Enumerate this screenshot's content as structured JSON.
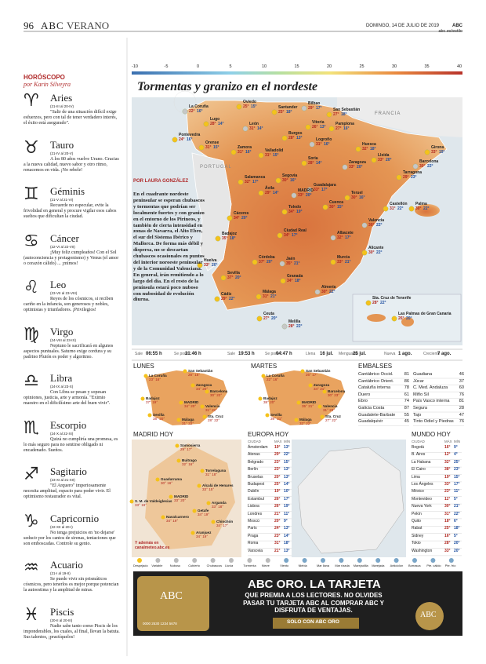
{
  "header": {
    "page": "96",
    "brand": "ABC",
    "section": "VERANO",
    "date": "DOMINGO, 14 DE JULIO DE 2019",
    "brand_right": "ABC",
    "url": "abc.es/estilo"
  },
  "horoscope": {
    "title": "HORÓSCOPO",
    "author": "por Karin Silveyra",
    "signs": [
      {
        "symbol": "♈",
        "name": "Aries",
        "dates": "(21-III al 20-IV)",
        "text": "\"Salir de una situación difícil exige esfuerzos, pero con tal de tener verdadero interés, el éxito está asegurado\"."
      },
      {
        "symbol": "♉",
        "name": "Tauro",
        "dates": "(21-IV al 20-V)",
        "text": "A los 80 años vuelve Urano. Gracias a la nueva calidad, nuevo sabor y otro ritmo, renacemos en vida. ¡No rebele!"
      },
      {
        "symbol": "♊",
        "name": "Géminis",
        "dates": "(21-V al 21-VI)",
        "text": "Recuerde no especular, evite la frivolidad en general y procure vigilar esos cabos sueltos que dificultan la ciudad."
      },
      {
        "symbol": "♋",
        "name": "Cáncer",
        "dates": "(22-VI al 22-VII)",
        "text": "¡Muy feliz cumpleaños! Con el Sol (autoconciencia y protagonismo) y Venus (el amor o corazón cálido) ... ¡mimos!"
      },
      {
        "symbol": "♌",
        "name": "Leo",
        "dates": "(23-VII al 23-VIII)",
        "text": "Reyes de los cósmicos, si reciben cariño en la infancia, son generosos y nobles, optimistas y triunfadores. ¡Privilegios!"
      },
      {
        "symbol": "♍",
        "name": "Virgo",
        "dates": "(24-VIII al 23-IX)",
        "text": "Neptuno le sacrificará en algunos aspectos puntuales. Saturno exige cordura y su padrino Plutón es poder y algoritmo."
      },
      {
        "symbol": "♎",
        "name": "Libra",
        "dates": "(24-IX al 23-X)",
        "text": "Con Libra se pesan y sopesan opiniones, justicia, arte y armonía. \"Eximio maestro en el dificilísimo arte del buen vivir\"."
      },
      {
        "symbol": "♏",
        "name": "Escorpio",
        "dates": "(24-X al 22-XI)",
        "text": "Quizá no cumpliría una promesa, es lo más seguro para no sentirse obligado ni encadenado. Sueños."
      },
      {
        "symbol": "♐",
        "name": "Sagitario",
        "dates": "(23-XI al 21-XII)",
        "text": "\"El Arquero\" imperiosamente necesita amplitud, espacio para poder vivir. El optimismo restaurador es vital."
      },
      {
        "symbol": "♑",
        "name": "Capricornio",
        "dates": "(22-XII al 20-I)",
        "text": "No tenga prejuicios en 'no dejarse' seducir por los cantos de sirenas, tentaciones que son emboscadas. Controle su genio."
      },
      {
        "symbol": "♒",
        "name": "Acuario",
        "dates": "(21-I al 19-II)",
        "text": "Se puede vivir sin prismáticos cósmicos, pero tenerlos es mejor porque potencian la autoestima y la amplitud de miras."
      },
      {
        "symbol": "♓",
        "name": "Piscis",
        "dates": "(20-II al 20-III)",
        "text": "Nadie sabe tanto como Piscis de los imponderables, los cuales, al final, llevan la batuta. Sus talentos, ¡practíquelos!"
      }
    ]
  },
  "weather": {
    "scale": [
      "-10",
      "-5",
      "0",
      "5",
      "10",
      "15",
      "20",
      "25",
      "30",
      "35",
      "40"
    ],
    "title": "Tormentas y granizo en el nordeste",
    "byline": "POR LAURA GONZÁLEZ",
    "article": "En el cuadrante nordeste peninsular se esperan chubascos y tormentas que podrían ser localmente fuertes y con granizo en el entorno de los Pirineos, y también de cierta intensidad en zonas de Navarra, el Alto Ebro, el sur del Sistema Ibérico y Mallorca. De forma más débil y dispersa, no se descartan chubascos ocasionales en puntos del interior noroeste peninsular y de la Comunidad Valenciana. En general, irán remitiendo a lo largo del día. En el resto de la península estará poco nuboso con nubosidad de evolución diurna.",
    "france": "FRANCIA",
    "portugal": "PORTUGAL",
    "cities": [
      {
        "name": "La Coruña",
        "max": "22°",
        "min": "16°"
      },
      {
        "name": "Lugo",
        "max": "28°",
        "min": "14°"
      },
      {
        "name": "Oviedo",
        "max": "25°",
        "min": "15°"
      },
      {
        "name": "Santander",
        "max": "25°",
        "min": "18°"
      },
      {
        "name": "Bilbao",
        "max": "29°",
        "min": "17°"
      },
      {
        "name": "San Sebastián",
        "max": "27°",
        "min": "18°"
      },
      {
        "name": "Pontevedra",
        "max": "24°",
        "min": "16°"
      },
      {
        "name": "Orense",
        "max": "31°",
        "min": "15°"
      },
      {
        "name": "León",
        "max": "31°",
        "min": "14°"
      },
      {
        "name": "Burgos",
        "max": "28°",
        "min": "13°"
      },
      {
        "name": "Vitoria",
        "max": "26°",
        "min": "13°"
      },
      {
        "name": "Pamplona",
        "max": "27°",
        "min": "16°"
      },
      {
        "name": "Logroño",
        "max": "31°",
        "min": "16°"
      },
      {
        "name": "Huesca",
        "max": "32°",
        "min": "18°"
      },
      {
        "name": "Girona",
        "max": "33°",
        "min": "19°"
      },
      {
        "name": "Lleida",
        "max": "33°",
        "min": "20°"
      },
      {
        "name": "Barcelona",
        "max": "30°",
        "min": "22°"
      },
      {
        "name": "Zamora",
        "max": "31°",
        "min": "16°"
      },
      {
        "name": "Valladolid",
        "max": "31°",
        "min": "15°"
      },
      {
        "name": "Soria",
        "max": "28°",
        "min": "14°"
      },
      {
        "name": "Zaragoza",
        "max": "33°",
        "min": "20°"
      },
      {
        "name": "Tarragona",
        "max": "29°",
        "min": "23°"
      },
      {
        "name": "Salamanca",
        "max": "32°",
        "min": "17°"
      },
      {
        "name": "Segovia",
        "max": "30°",
        "min": "16°"
      },
      {
        "name": "Guadalajara",
        "max": "33°",
        "min": "17°"
      },
      {
        "name": "Teruel",
        "max": "30°",
        "min": "16°"
      },
      {
        "name": "Castellón",
        "max": "31°",
        "min": "22°"
      },
      {
        "name": "Ávila",
        "max": "29°",
        "min": "14°"
      },
      {
        "name": "MADRID",
        "max": "33°",
        "min": "20°"
      },
      {
        "name": "Cuenca",
        "max": "30°",
        "min": "15°"
      },
      {
        "name": "Cáceres",
        "max": "34°",
        "min": "20°"
      },
      {
        "name": "Toledo",
        "max": "34°",
        "min": "19°"
      },
      {
        "name": "Valencia",
        "max": "30°",
        "min": "22°"
      },
      {
        "name": "Palma",
        "max": "30°",
        "min": "22°"
      },
      {
        "name": "Badajoz",
        "max": "35°",
        "min": "18°"
      },
      {
        "name": "Ciudad Real",
        "max": "34°",
        "min": "17°"
      },
      {
        "name": "Albacete",
        "max": "32°",
        "min": "17°"
      },
      {
        "name": "Alicante",
        "max": "30°",
        "min": "22°"
      },
      {
        "name": "Huelva",
        "max": "33°",
        "min": "20°"
      },
      {
        "name": "Córdoba",
        "max": "37°",
        "min": "20°"
      },
      {
        "name": "Jaén",
        "max": "35°",
        "min": "21°"
      },
      {
        "name": "Murcia",
        "max": "33°",
        "min": "21°"
      },
      {
        "name": "Sevilla",
        "max": "37°",
        "min": "20°"
      },
      {
        "name": "Granada",
        "max": "34°",
        "min": "18°"
      },
      {
        "name": "Almería",
        "max": "30°",
        "min": "22°"
      },
      {
        "name": "Cádiz",
        "max": "29°",
        "min": "22°"
      },
      {
        "name": "Málaga",
        "max": "31°",
        "min": "21°"
      },
      {
        "name": "Ceuta",
        "max": "27°",
        "min": "20°"
      },
      {
        "name": "Melilla",
        "max": "28°",
        "min": "22°"
      },
      {
        "name": "Sta. Cruz de Tenerife",
        "max": "28°",
        "min": "22°"
      },
      {
        "name": "Las Palmas de Gran Canaria",
        "max": "26°",
        "min": "20°"
      }
    ]
  },
  "sun_moon": [
    {
      "label": "Sale",
      "value": "06:55 h"
    },
    {
      "label": "Se pone",
      "value": "21:46 h"
    },
    {
      "label": "Sale",
      "value": "19:53 h"
    },
    {
      "label": "Se pone",
      "value": "04:47 h"
    },
    {
      "label": "Llena",
      "value": "16 jul."
    },
    {
      "label": "Menguante",
      "value": "25 jul."
    },
    {
      "label": "Nueva",
      "value": "1 ago."
    },
    {
      "label": "Creciente",
      "value": "7 ago."
    }
  ],
  "days": [
    {
      "title": "LUNES",
      "cities": [
        {
          "name": "La Coruña",
          "t": "23° 16°"
        },
        {
          "name": "San Sebastián",
          "t": "28° 18°"
        },
        {
          "name": "Zaragoza",
          "t": "34° 20°"
        },
        {
          "name": "Barcelona",
          "t": "30° 22°"
        },
        {
          "name": "Badajoz",
          "t": "37° 19°"
        },
        {
          "name": "MADRID",
          "t": "34° 20°"
        },
        {
          "name": "Valencia",
          "t": "31° 22°"
        },
        {
          "name": "Sevilla",
          "t": "38° 20°"
        },
        {
          "name": "Málaga",
          "t": "31° 22°"
        },
        {
          "name": "Sta. Cruz",
          "t": "28° 22°"
        }
      ]
    },
    {
      "title": "MARTES",
      "cities": [
        {
          "name": "La Coruña",
          "t": "22° 16°"
        },
        {
          "name": "San Sebastián",
          "t": "26° 17°"
        },
        {
          "name": "Zaragoza",
          "t": "34° 21°"
        },
        {
          "name": "Barcelona",
          "t": "30° 23°"
        },
        {
          "name": "Badajoz",
          "t": "38° 20°"
        },
        {
          "name": "MADRID",
          "t": "35° 21°"
        },
        {
          "name": "Valencia",
          "t": "31° 23°"
        },
        {
          "name": "Sevilla",
          "t": "39° 21°"
        },
        {
          "name": "Málaga",
          "t": "32° 22°"
        },
        {
          "name": "Sta. Cruz",
          "t": "27° 22°"
        }
      ]
    }
  ],
  "embalses": {
    "title": "EMBALSES",
    "rows": [
      [
        "Cantábrico Occid.",
        "81"
      ],
      [
        "Cantábrico Orient.",
        "86"
      ],
      [
        "Cataluña interna",
        "78"
      ],
      [
        "Duero",
        "61"
      ],
      [
        "Ebro",
        "74"
      ],
      [
        "Galicia Costa",
        "87"
      ],
      [
        "Guadalete-Barbate",
        "55"
      ],
      [
        "Guadalquivir",
        "45"
      ],
      [
        "Guadiana",
        "46"
      ],
      [
        "Júcar",
        "37"
      ],
      [
        "C. Med. Andaluza",
        "60"
      ],
      [
        "Miño Sil",
        "76"
      ],
      [
        "País Vasco interna",
        "81"
      ],
      [
        "Segura",
        "28"
      ],
      [
        "Tajo",
        "47"
      ],
      [
        "Tinto Odiel y Piedras",
        "76"
      ]
    ]
  },
  "madrid": {
    "title": "MADRID HOY",
    "cities": [
      {
        "name": "Somosierra",
        "t": "29° 17°"
      },
      {
        "name": "Buitrago",
        "t": "32° 16°"
      },
      {
        "name": "Torrelaguna",
        "t": "31° 18°"
      },
      {
        "name": "Guadarrama",
        "t": "30° 16°"
      },
      {
        "name": "Alcalá de Henares",
        "t": "33° 15°"
      },
      {
        "name": "MADRID",
        "t": "33° 20°"
      },
      {
        "name": "S. M. de Valdeiglesias",
        "t": "33° 19°"
      },
      {
        "name": "Getafe",
        "t": "34° 19°"
      },
      {
        "name": "Arganda",
        "t": "33° 18°"
      },
      {
        "name": "Navalcarnero",
        "t": "34° 19°"
      },
      {
        "name": "Chinchón",
        "t": "34° 17°"
      },
      {
        "name": "Aranjuez",
        "t": "34° 19°"
      }
    ],
    "footer": "Y además en canalmeteo.abc.es"
  },
  "europa": {
    "title": "EUROPA HOY",
    "headers": [
      "CIUDAD",
      "MÁX",
      "MÍN"
    ],
    "rows": [
      [
        "Ámsterdam",
        "19°",
        "13°"
      ],
      [
        "Atenas",
        "29°",
        "22°"
      ],
      [
        "Belgrado",
        "23°",
        "15°"
      ],
      [
        "Berlín",
        "23°",
        "13°"
      ],
      [
        "Bruselas",
        "20°",
        "13°"
      ],
      [
        "Budapest",
        "25°",
        "14°"
      ],
      [
        "Dublín",
        "19°",
        "10°"
      ],
      [
        "Estambul",
        "26°",
        "17°"
      ],
      [
        "Lisboa",
        "26°",
        "19°"
      ],
      [
        "Londres",
        "21°",
        "11°"
      ],
      [
        "Moscú",
        "20°",
        "9°"
      ],
      [
        "París",
        "24°",
        "13°"
      ],
      [
        "Praga",
        "23°",
        "14°"
      ],
      [
        "Roma",
        "31°",
        "18°"
      ],
      [
        "Varsovia",
        "21°",
        "13°"
      ]
    ]
  },
  "mundo": {
    "title": "MUNDO HOY",
    "headers": [
      "CIUDAD",
      "MÁX",
      "MÍN"
    ],
    "rows": [
      [
        "Bogotá",
        "16°",
        "9°"
      ],
      [
        "B. Aires",
        "12°",
        "4°"
      ],
      [
        "La Habana",
        "32°",
        "25°"
      ],
      [
        "El Cairo",
        "38°",
        "23°"
      ],
      [
        "Lima",
        "19°",
        "15°"
      ],
      [
        "Los Ángeles",
        "33°",
        "17°"
      ],
      [
        "México",
        "23°",
        "11°"
      ],
      [
        "Montevideo",
        "11°",
        "5°"
      ],
      [
        "Nueva York",
        "30°",
        "21°"
      ],
      [
        "Pekín",
        "31°",
        "22°"
      ],
      [
        "Quito",
        "18°",
        "6°"
      ],
      [
        "Rabat",
        "25°",
        "18°"
      ],
      [
        "Sidney",
        "16°",
        "5°"
      ],
      [
        "Tokio",
        "28°",
        "20°"
      ],
      [
        "Washington",
        "33°",
        "20°"
      ]
    ]
  },
  "legend": [
    "Despejado",
    "Variable",
    "Nuboso",
    "Cubierto",
    "Chubascos",
    "Lluvia",
    "Tormenta",
    "Nieve",
    "Viento",
    "Niebla",
    "Mar llana",
    "Mar rizada",
    "Marejadilla",
    "Marejada",
    "Anticiclón",
    "Borrasca",
    "Pte. cálido",
    "Pte. frío"
  ],
  "ad": {
    "headline": "ABC ORO. LA TARJETA",
    "body": "QUE PREMIA A LOS LECTORES. NO OLVIDES PASAR TU TARJETA ABC AL COMPRAR ABC Y DISFRUTA DE VENTAJAS.",
    "button": "SOLO CON ABC ORO",
    "card_brand": "ABC",
    "card_number": "0000 2530 1234 5678",
    "badge": "ABC"
  }
}
